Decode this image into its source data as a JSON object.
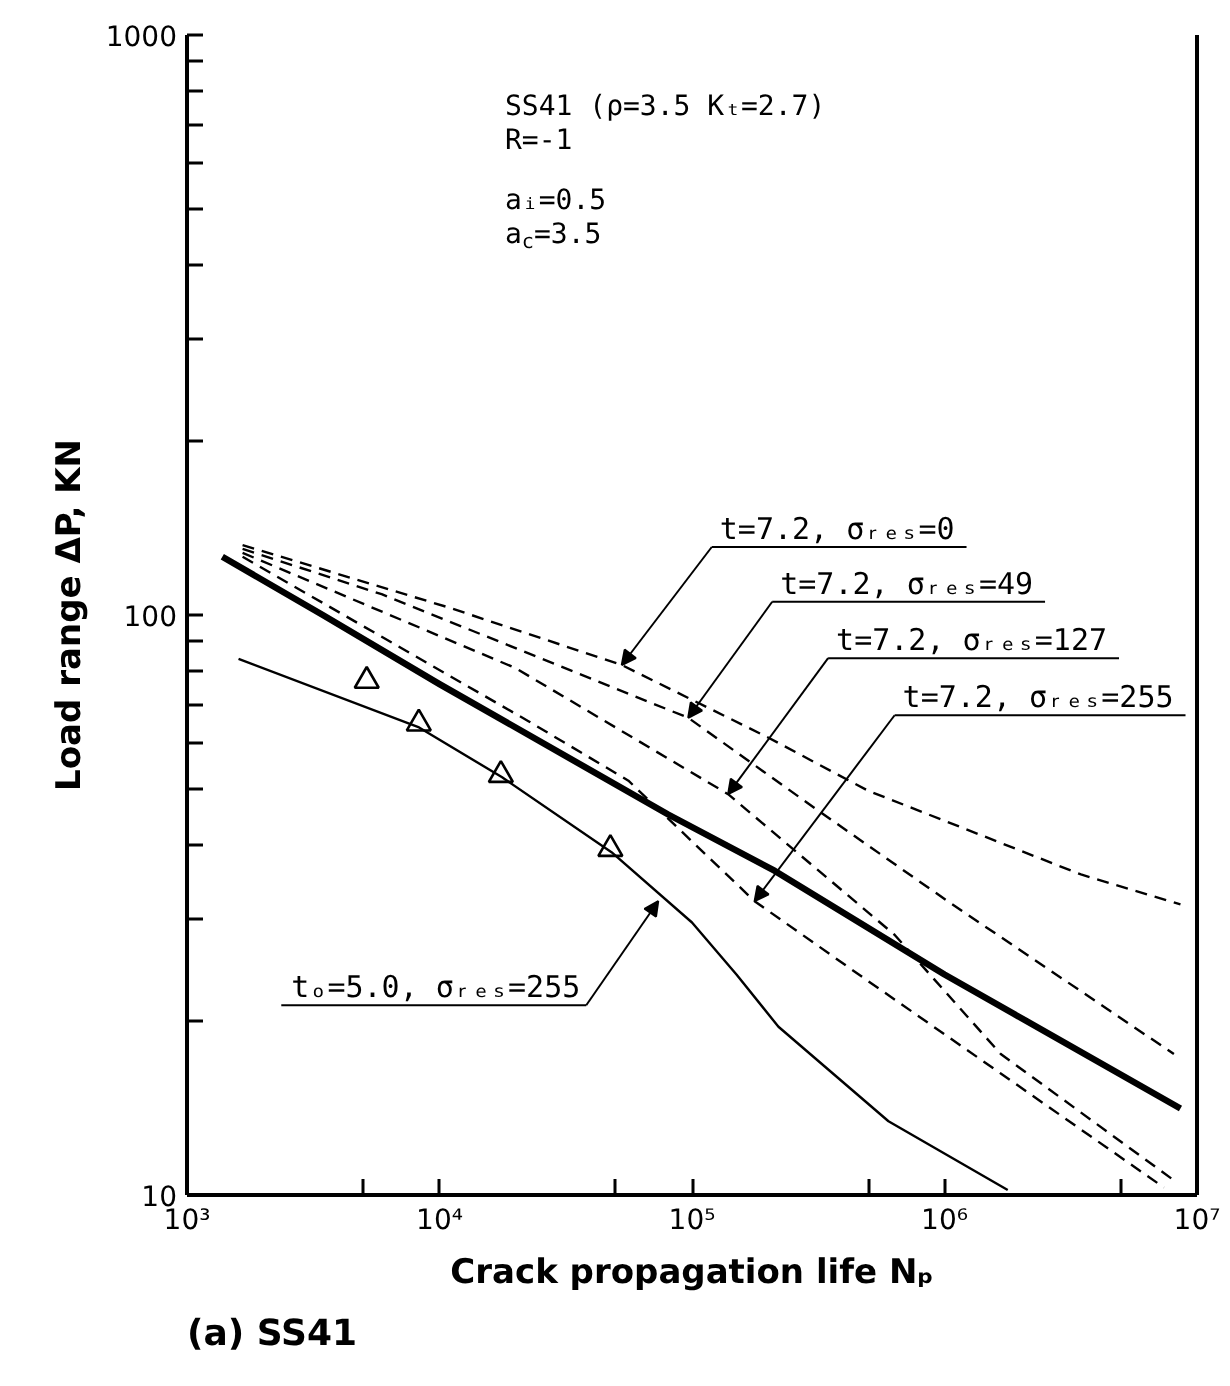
{
  "chart_data": {
    "type": "line",
    "title": "(a) SS41",
    "xlabel": "Crack propagation life Nₚ",
    "ylabel": "Load range ΔP, KN",
    "log": "xy",
    "grid": false,
    "xlim": [
      1000,
      10000000
    ],
    "ylim": [
      10,
      1000
    ],
    "xticks": [
      {
        "value": 1000,
        "label": "10³"
      },
      {
        "value": 5000,
        "label": null
      },
      {
        "value": 10000,
        "label": "10⁴"
      },
      {
        "value": 50000,
        "label": null
      },
      {
        "value": 100000,
        "label": "10⁵"
      },
      {
        "value": 500000,
        "label": null
      },
      {
        "value": 1000000,
        "label": "10⁶"
      },
      {
        "value": 5000000,
        "label": null
      },
      {
        "value": 10000000,
        "label": "10⁷"
      }
    ],
    "yticks": [
      10,
      {
        "value": 20,
        "label": null
      },
      {
        "value": 30,
        "label": null
      },
      {
        "value": 40,
        "label": null
      },
      {
        "value": 50,
        "label": null
      },
      {
        "value": 60,
        "label": null
      },
      {
        "value": 70,
        "label": null
      },
      {
        "value": 80,
        "label": null
      },
      {
        "value": 90,
        "label": null
      },
      100,
      {
        "value": 200,
        "label": null
      },
      {
        "value": 300,
        "label": null
      },
      {
        "value": 400,
        "label": null
      },
      {
        "value": 500,
        "label": null
      },
      {
        "value": 600,
        "label": null
      },
      {
        "value": 700,
        "label": null
      },
      {
        "value": 800,
        "label": null
      },
      {
        "value": 900,
        "label": null
      },
      1000
    ],
    "series": [
      {
        "color": "#000000",
        "line_style": "solid",
        "x": [
          1380,
          3450,
          10000,
          80500,
          213000,
          1000000,
          8600000
        ],
        "values": [
          126,
          100,
          76,
          45.3,
          36.2,
          24,
          14.1
        ]
      },
      {
        "color": "#000000",
        "line_style": "solid",
        "x": [
          1600,
          8300,
          17700,
          48000,
          100000,
          150000,
          220000,
          600000,
          1780000
        ],
        "values": [
          84,
          64,
          52.5,
          39,
          29.5,
          24,
          19.5,
          13.4,
          10.2
        ]
      },
      {
        "type": "scatter",
        "color": "#000000",
        "marker": "triangle",
        "x": [
          5150,
          8280,
          17500,
          47500
        ],
        "values": [
          77,
          65,
          53,
          39.5
        ]
      },
      {
        "color": "#000000",
        "line_style": "dashed",
        "x": [
          1660,
          10900,
          52700,
          200000,
          497000,
          3470000,
          8600000
        ],
        "values": [
          132,
          103,
          82,
          61.5,
          49.8,
          35.7,
          31.7
        ]
      },
      {
        "color": "#000000",
        "line_style": "dashed",
        "x": [
          1660,
          5900,
          96600,
          325000,
          1030000,
          8100000
        ],
        "values": [
          130,
          108.6,
          66.5,
          45.6,
          32.1,
          17.5
        ]
      },
      {
        "color": "#000000",
        "line_style": "dashed",
        "x": [
          1660,
          20000,
          139000,
          634000,
          1670000,
          8100000
        ],
        "values": [
          128,
          81,
          49.1,
          28.1,
          17.5,
          10.6
        ]
      },
      {
        "color": "#000000",
        "line_style": "dashed",
        "x": [
          1660,
          22500,
          56000,
          177000,
          497000,
          1670000,
          7400000
        ],
        "values": [
          126,
          65.6,
          51.8,
          32.1,
          23.4,
          16.2,
          10.3
        ]
      }
    ],
    "annotations": [
      "SS41 (ρ=3.5 Kₜ=2.7)",
      "R=-1",
      "aᵢ=0.5",
      "a$_{c}$=3.5",
      {
        "text": "t=7.2, σᵣₑₛ=0",
        "x": 52700,
        "y": 82
      },
      {
        "text": "t=7.2, σᵣₑₛ=49",
        "x": 96600,
        "y": 66.5
      },
      {
        "text": "t=7.2, σᵣₑₛ=127",
        "x": 139000,
        "y": 49.1
      },
      {
        "text": "t=7.2, σᵣₑₛ=255",
        "x": 177000,
        "y": 32.1
      },
      {
        "text": "tₒ=5.0, σᵣₑₛ=255",
        "x": 73500,
        "y": 32.1
      }
    ]
  }
}
